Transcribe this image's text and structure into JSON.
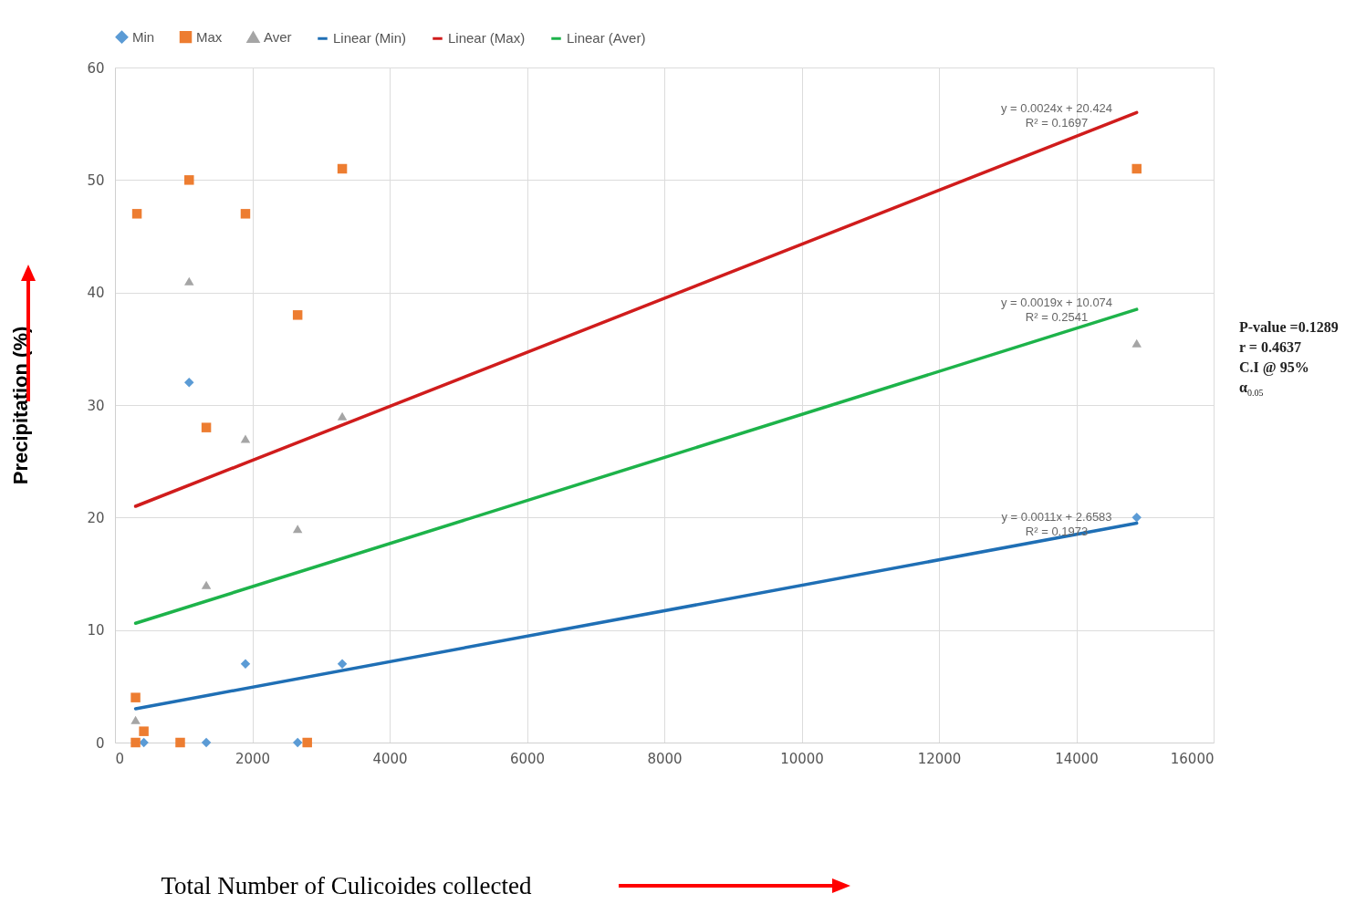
{
  "chart_data": {
    "type": "scatter",
    "xlabel": "Total Number of Culicoides collected",
    "ylabel": "Precipitation (%)",
    "xlim": [
      0,
      16000
    ],
    "xticks": [
      0,
      2000,
      4000,
      6000,
      8000,
      10000,
      12000,
      14000,
      16000
    ],
    "ylim": [
      0,
      60
    ],
    "yticks": [
      0,
      10,
      20,
      30,
      40,
      50,
      60
    ],
    "grid": true,
    "legend": "top",
    "series": [
      {
        "name": "Min",
        "marker": "diamond",
        "color": "#5b9bd5",
        "x": [
          420,
          1080,
          1330,
          1900,
          2660,
          3310,
          14880
        ],
        "values": [
          0,
          32,
          0,
          7,
          0,
          7,
          20
        ]
      },
      {
        "name": "Max",
        "marker": "square",
        "color": "#ed7d31",
        "x": [
          320,
          300,
          300,
          420,
          950,
          1080,
          1330,
          1900,
          2660,
          2800,
          3310,
          14880
        ],
        "values": [
          47,
          4,
          0,
          1,
          0,
          50,
          28,
          47,
          38,
          0,
          51,
          51
        ]
      },
      {
        "name": "Aver",
        "marker": "triangle",
        "color": "#a5a5a5",
        "x": [
          300,
          1080,
          1330,
          1900,
          2660,
          3310,
          14880
        ],
        "values": [
          2,
          41,
          14,
          27,
          19,
          29,
          35.5
        ]
      },
      {
        "name": "Linear (Min)",
        "type": "line",
        "marker": "none",
        "color": "#1f6fb5",
        "x": [
          300,
          14880
        ],
        "values": [
          3.0,
          19.5
        ]
      },
      {
        "name": "Linear (Max)",
        "type": "line",
        "marker": "none",
        "color": "#d01c1c",
        "x": [
          300,
          14880
        ],
        "values": [
          21,
          56
        ]
      },
      {
        "name": "Linear (Aver)",
        "type": "line",
        "marker": "none",
        "color": "#1db34a",
        "x": [
          300,
          14880
        ],
        "values": [
          10.6,
          38.5
        ]
      }
    ],
    "annotations": [
      "y = 0.0024x + 20.424",
      "R² = 0.1697",
      "y = 0.0019x + 10.074",
      "R² = 0.2541",
      "y = 0.0011x + 2.6583",
      "R² = 0.1973",
      "P-value =0.1289",
      "r = 0.4637",
      "C.I @ 95%",
      "α$_{0.05}$"
    ]
  }
}
